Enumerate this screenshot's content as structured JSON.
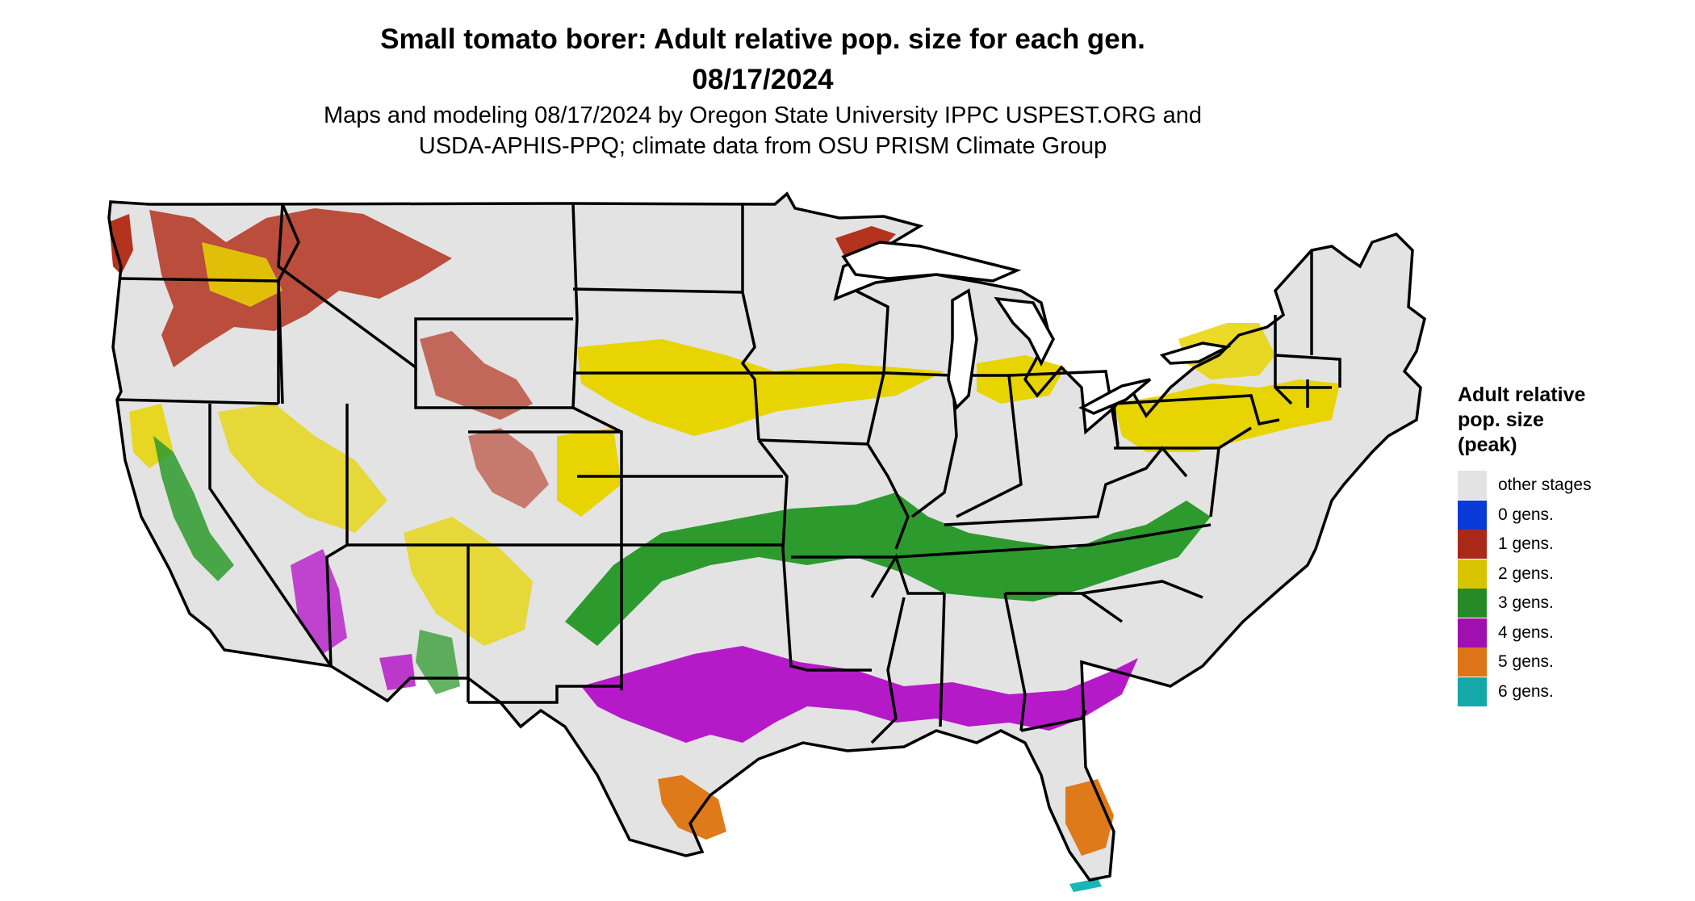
{
  "title_line1": "Small tomato borer: Adult relative pop. size for each gen.",
  "title_line2": "08/17/2024",
  "subtitle_line1": "Maps and modeling 08/17/2024 by Oregon State University IPPC USPEST.ORG and",
  "subtitle_line2": "USDA-APHIS-PPQ; climate data from OSU PRISM Climate Group",
  "legend": {
    "title_line1": "Adult relative",
    "title_line2": "pop. size",
    "title_line3": "(peak)",
    "items": [
      {
        "label": "other stages",
        "color": "#e3e3e3"
      },
      {
        "label": "0 gens.",
        "color": "#0a3bd9"
      },
      {
        "label": "1 gens.",
        "color": "#a8281a"
      },
      {
        "label": "2 gens.",
        "color": "#d8c400"
      },
      {
        "label": "3 gens.",
        "color": "#268a26"
      },
      {
        "label": "4 gens.",
        "color": "#a00fb0"
      },
      {
        "label": "5 gens.",
        "color": "#dd7418"
      },
      {
        "label": "6 gens.",
        "color": "#14a8a8"
      }
    ]
  },
  "map_colors": {
    "background": "#e3e3e3",
    "border": "#000000",
    "gen1": "#b3331f",
    "gen2": "#e7d400",
    "gen3": "#2d9a2d",
    "gen4": "#b51ac8",
    "gen5": "#df7a1a",
    "gen6": "#18b6b6"
  }
}
